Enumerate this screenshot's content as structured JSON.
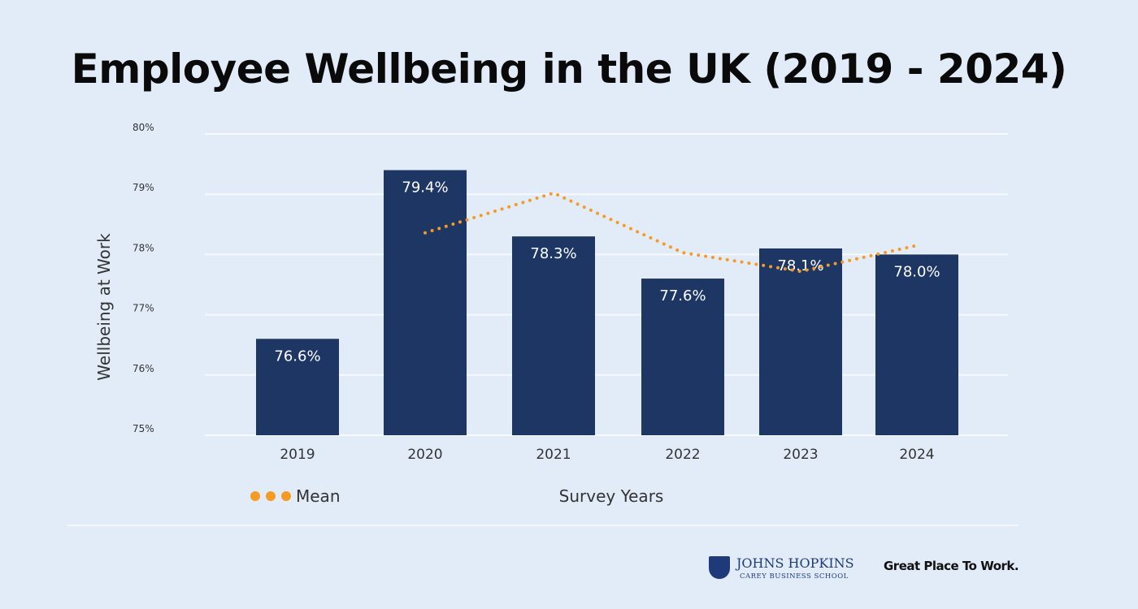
{
  "chart_data": {
    "type": "bar",
    "title": "Employee Wellbeing in the UK (2019 - 2024)",
    "xlabel": "Survey Years",
    "ylabel": "Wellbeing at Work",
    "categories": [
      "2019",
      "2020",
      "2021",
      "2022",
      "2023",
      "2024"
    ],
    "values": [
      76.6,
      79.4,
      78.3,
      77.6,
      78.1,
      78.0
    ],
    "data_labels": [
      "76.6%",
      "79.4%",
      "78.3%",
      "77.6%",
      "78.1%",
      "78.0%"
    ],
    "mean_line": {
      "name": "Mean",
      "type": "line",
      "style": "dotted",
      "x": [
        "2020",
        "2021",
        "2022",
        "2023",
        "2024"
      ],
      "values": [
        78.36,
        79.02,
        78.03,
        77.72,
        78.15
      ]
    },
    "ylim": [
      75,
      80
    ],
    "yticks": [
      "75%",
      "76%",
      "77%",
      "78%",
      "79%",
      "80%"
    ],
    "grid": true,
    "legend": "bottom-left",
    "colors": {
      "bar": "#1e3663",
      "mean": "#f59a23",
      "background": "#e2ecf8"
    }
  },
  "logos": {
    "jhu_name": "JOHNS HOPKINS",
    "jhu_sub": "CAREY BUSINESS SCHOOL",
    "gptw": "Great Place To Work."
  }
}
